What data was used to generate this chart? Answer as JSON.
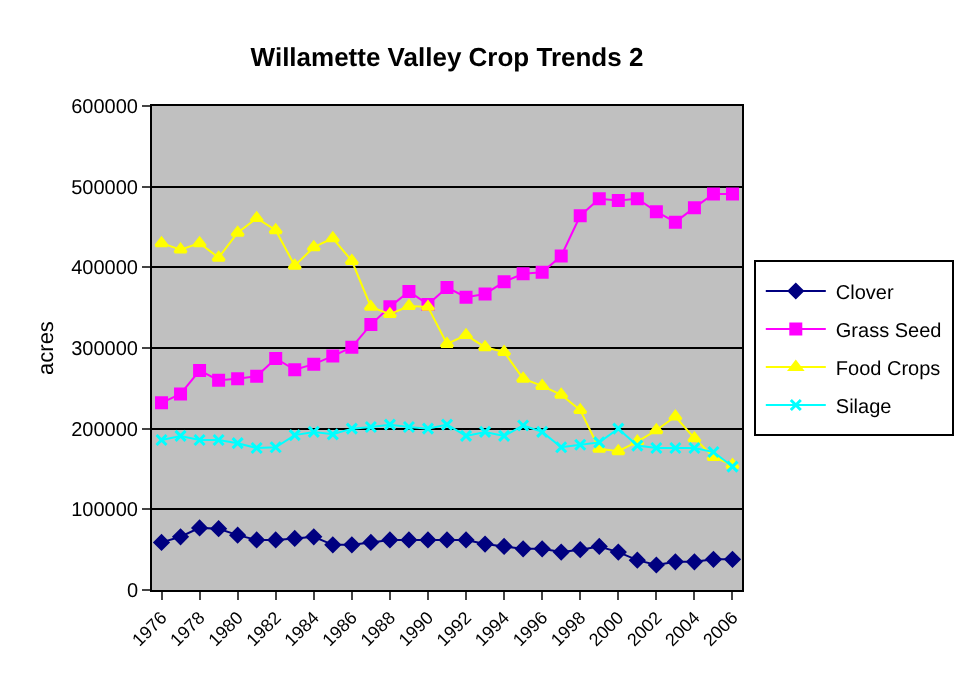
{
  "chart_data": {
    "type": "line",
    "title": "Willamette Valley Crop Trends 2",
    "ylabel": "acres",
    "categories": [
      "1976",
      null,
      "1978",
      null,
      "1980",
      null,
      "1982",
      null,
      "1984",
      null,
      "1986",
      null,
      "1988",
      null,
      "1990",
      null,
      "1992",
      null,
      "1994",
      null,
      "1996",
      null,
      "1998",
      null,
      "2000",
      null,
      "2002",
      null,
      "2004",
      null,
      "2006"
    ],
    "series": [
      {
        "name": "Clover",
        "color": "#000080",
        "marker": "diamond",
        "values": [
          59000,
          66000,
          77000,
          76000,
          68000,
          62000,
          62000,
          64000,
          66000,
          56000,
          56000,
          59000,
          62000,
          62000,
          62000,
          62000,
          62000,
          57000,
          54000,
          51000,
          51000,
          47000,
          50000,
          54000,
          47000,
          37000,
          31000,
          35000,
          35000,
          38000,
          38000
        ]
      },
      {
        "name": "Grass Seed",
        "color": "#ff00ff",
        "marker": "square",
        "values": [
          232000,
          243000,
          272000,
          260000,
          262000,
          265000,
          287000,
          273000,
          280000,
          290000,
          301000,
          329000,
          351000,
          370000,
          354000,
          375000,
          363000,
          367000,
          382000,
          392000,
          394000,
          414000,
          464000,
          485000,
          483000,
          485000,
          469000,
          456000,
          474000,
          491000,
          491000
        ]
      },
      {
        "name": "Food Crops",
        "color": "#ffff00",
        "marker": "triangle",
        "values": [
          430000,
          422000,
          430000,
          412000,
          443000,
          461000,
          446000,
          402000,
          425000,
          436000,
          408000,
          351000,
          342000,
          352000,
          351000,
          305000,
          316000,
          301000,
          295000,
          262000,
          253000,
          242000,
          223000,
          175000,
          172000,
          184000,
          198000,
          215000,
          188000,
          165000,
          155000
        ]
      },
      {
        "name": "Silage",
        "color": "#00ffff",
        "marker": "cross",
        "values": [
          186000,
          191000,
          186000,
          186000,
          182000,
          176000,
          177000,
          192000,
          196000,
          193000,
          200000,
          202000,
          205000,
          202000,
          200000,
          205000,
          191000,
          196000,
          191000,
          204000,
          196000,
          177000,
          180000,
          183000,
          200000,
          179000,
          176000,
          176000,
          176000,
          171000,
          153000
        ]
      }
    ],
    "ylim": [
      0,
      600000
    ],
    "yticks": [
      0,
      100000,
      200000,
      300000,
      400000,
      500000,
      600000
    ],
    "grid": "y",
    "legend": "right",
    "line_style": "solid"
  }
}
